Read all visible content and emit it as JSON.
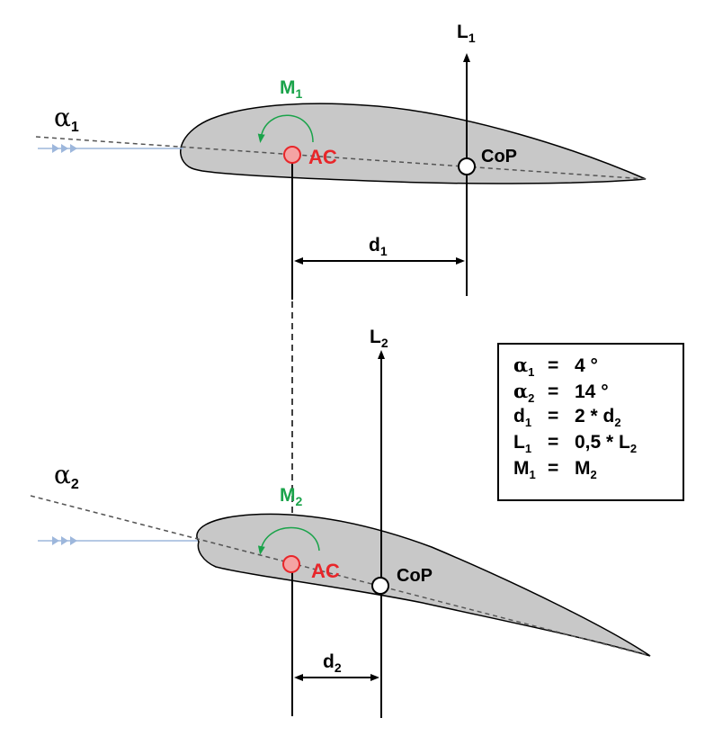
{
  "colors": {
    "airfoil_fill": "#c8c8c8",
    "flow": "#9db7dc",
    "ac": "#e8262a",
    "moment": "#1aa34a",
    "line": "#000000"
  },
  "top": {
    "alpha_sym": "α",
    "alpha_sub": "1",
    "moment_sym": "M",
    "moment_sub": "1",
    "ac_label": "AC",
    "cop_label": "CoP",
    "lift_sym": "L",
    "lift_sub": "1",
    "d_sym": "d",
    "d_sub": "1"
  },
  "bottom": {
    "alpha_sym": "α",
    "alpha_sub": "2",
    "moment_sym": "M",
    "moment_sub": "2",
    "ac_label": "AC",
    "cop_label": "CoP",
    "lift_sym": "L",
    "lift_sub": "2",
    "d_sym": "d",
    "d_sub": "2"
  },
  "legend": [
    {
      "sym": "α",
      "sub": "1",
      "eq": "=",
      "rhs": "4 °",
      "rhs_sub": "",
      "rhs_tail": ""
    },
    {
      "sym": "α",
      "sub": "2",
      "eq": "=",
      "rhs": "14 °",
      "rhs_sub": "",
      "rhs_tail": ""
    },
    {
      "sym": "d",
      "sub": "1",
      "eq": "=",
      "rhs": "2 * d",
      "rhs_sub": "2",
      "rhs_tail": ""
    },
    {
      "sym": "L",
      "sub": "1",
      "eq": "=",
      "rhs": "0,5 * L",
      "rhs_sub": "2",
      "rhs_tail": ""
    },
    {
      "sym": "M",
      "sub": "1",
      "eq": "=",
      "rhs": "M",
      "rhs_sub": "2",
      "rhs_tail": ""
    }
  ]
}
